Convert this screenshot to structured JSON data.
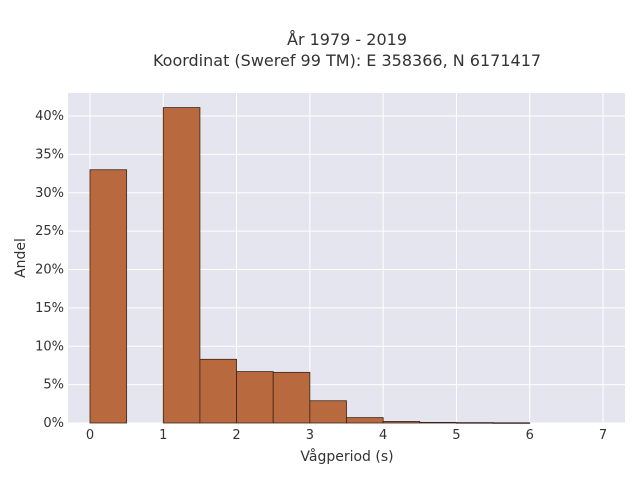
{
  "chart_data": {
    "type": "bar",
    "title": [
      "År 1979 - 2019",
      "Koordinat (Sweref 99 TM): E 358366, N 6171417"
    ],
    "xlabel": "Vågperiod (s)",
    "ylabel": "Andel",
    "xlim": [
      -0.3,
      7.3
    ],
    "ylim": [
      0,
      0.43
    ],
    "xticks": [
      0,
      1,
      2,
      3,
      4,
      5,
      6,
      7
    ],
    "yticks": [
      0,
      0.05,
      0.1,
      0.15,
      0.2,
      0.25,
      0.3,
      0.35,
      0.4
    ],
    "ytick_labels": [
      "0%",
      "5%",
      "10%",
      "15%",
      "20%",
      "25%",
      "30%",
      "35%",
      "40%"
    ],
    "bin_width": 0.5,
    "bins": [
      {
        "x0": 0.0,
        "x1": 0.5,
        "value": 0.33
      },
      {
        "x0": 0.5,
        "x1": 1.0,
        "value": 0.0
      },
      {
        "x0": 1.0,
        "x1": 1.5,
        "value": 0.411
      },
      {
        "x0": 1.5,
        "x1": 2.0,
        "value": 0.083
      },
      {
        "x0": 2.0,
        "x1": 2.5,
        "value": 0.067
      },
      {
        "x0": 2.5,
        "x1": 3.0,
        "value": 0.066
      },
      {
        "x0": 3.0,
        "x1": 3.5,
        "value": 0.029
      },
      {
        "x0": 3.5,
        "x1": 4.0,
        "value": 0.007
      },
      {
        "x0": 4.0,
        "x1": 4.5,
        "value": 0.002
      },
      {
        "x0": 4.5,
        "x1": 5.0,
        "value": 0.0008
      },
      {
        "x0": 5.0,
        "x1": 5.5,
        "value": 0.0005
      },
      {
        "x0": 5.5,
        "x1": 6.0,
        "value": 0.0003
      }
    ],
    "grid": true,
    "colors": {
      "bar_fill": "#b86a3e",
      "bar_edge": "#3a2418",
      "plot_bg": "#e5e5ef",
      "grid": "#ffffff"
    }
  }
}
